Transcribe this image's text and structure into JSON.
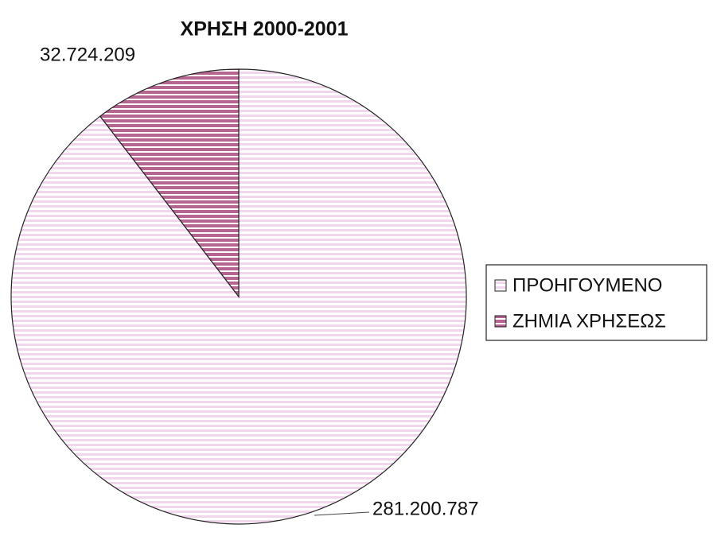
{
  "chart_data": {
    "type": "pie",
    "title": "ΧΡΗΣΗ 2000-2001",
    "categories": [
      "ΠΡΟΗΓΟΥΜΕΝΟ",
      "ΖΗΜΙΑ ΧΡΗΣΕΩΣ"
    ],
    "values": [
      281200787,
      32724209
    ],
    "value_labels": [
      "281.200.787",
      "32.724.209"
    ],
    "colors": [
      "#f2d6ee",
      "#b5658f"
    ],
    "legend": "right"
  }
}
